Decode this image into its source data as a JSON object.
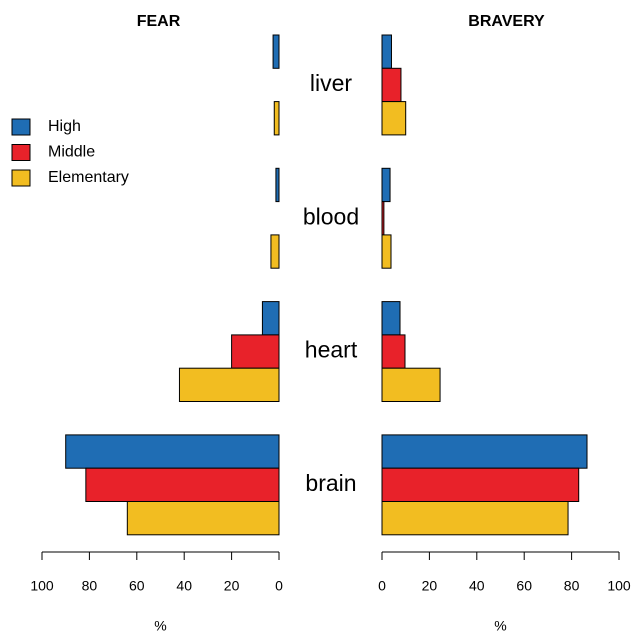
{
  "chart_data": {
    "type": "bar",
    "orientation": "horizontal",
    "categories": [
      "liver",
      "blood",
      "heart",
      "brain"
    ],
    "series": [
      {
        "name": "High",
        "color": "#1f6db4"
      },
      {
        "name": "Middle",
        "color": "#e8222a"
      },
      {
        "name": "Elementary",
        "color": "#f2bd21"
      }
    ],
    "legend": "left",
    "panels": [
      {
        "title": "FEAR",
        "xlim": [
          100,
          0
        ],
        "xticks": [
          100,
          80,
          60,
          40,
          20,
          0
        ],
        "xlabel": "%",
        "series": [
          {
            "values": [
              2.5,
              1.3,
              7,
              90
            ]
          },
          {
            "values": [
              0,
              0,
              20,
              81.5
            ]
          },
          {
            "values": [
              2,
              3.4,
              42,
              64
            ]
          }
        ]
      },
      {
        "title": "BRAVERY",
        "xlim": [
          0,
          100
        ],
        "xticks": [
          0,
          20,
          40,
          60,
          80,
          100
        ],
        "xlabel": "%",
        "series": [
          {
            "values": [
              4,
              3.4,
              7.6,
              86.5
            ]
          },
          {
            "values": [
              8,
              0.8,
              9.7,
              83
            ]
          },
          {
            "values": [
              10,
              3.8,
              24.5,
              78.5
            ]
          }
        ]
      }
    ]
  }
}
